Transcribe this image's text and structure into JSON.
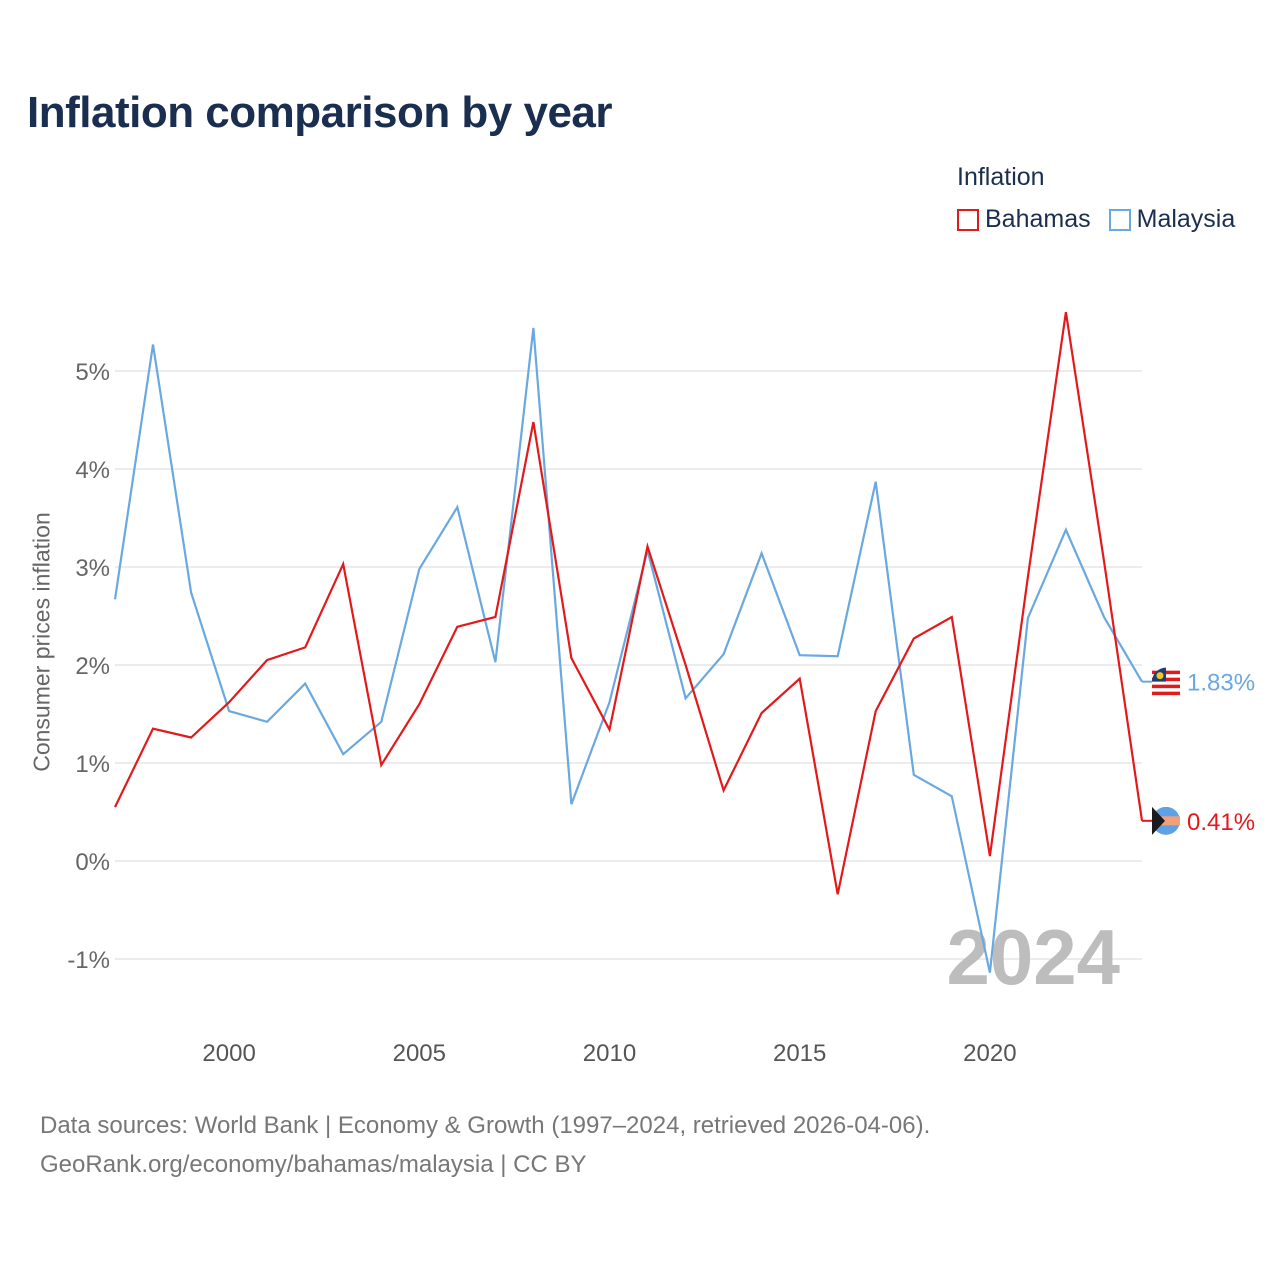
{
  "title": "Inflation comparison by year",
  "legend": {
    "title": "Inflation",
    "items": [
      {
        "name": "Bahamas",
        "color": "#e31a1c"
      },
      {
        "name": "Malaysia",
        "color": "#6aa8e0"
      }
    ]
  },
  "chart_data": {
    "type": "line",
    "title": "Inflation comparison by year",
    "xlabel": "",
    "ylabel": "Consumer prices inflation",
    "x": [
      1997,
      1998,
      1999,
      2000,
      2001,
      2002,
      2003,
      2004,
      2005,
      2006,
      2007,
      2008,
      2009,
      2010,
      2011,
      2012,
      2013,
      2014,
      2015,
      2016,
      2017,
      2018,
      2019,
      2020,
      2021,
      2022,
      2023,
      2024
    ],
    "series": [
      {
        "name": "Bahamas",
        "color": "#e31a1c",
        "values": [
          0.55,
          1.35,
          1.26,
          1.62,
          2.05,
          2.18,
          3.03,
          0.98,
          1.6,
          2.39,
          2.49,
          4.48,
          2.07,
          1.34,
          3.21,
          2.0,
          0.72,
          1.51,
          1.86,
          -0.34,
          1.53,
          2.27,
          2.49,
          0.05,
          2.9,
          5.6,
          3.06,
          0.41
        ],
        "end_label": "0.41%"
      },
      {
        "name": "Malaysia",
        "color": "#6aa8e0",
        "values": [
          2.67,
          5.27,
          2.74,
          1.53,
          1.42,
          1.81,
          1.09,
          1.42,
          2.98,
          3.61,
          2.03,
          5.44,
          0.58,
          1.62,
          3.17,
          1.66,
          2.11,
          3.14,
          2.1,
          2.09,
          3.87,
          0.88,
          0.66,
          -1.14,
          2.48,
          3.38,
          2.49,
          1.83
        ],
        "end_label": "1.83%"
      }
    ],
    "y_ticks": [
      -1,
      0,
      1,
      2,
      3,
      4,
      5
    ],
    "y_tick_labels": [
      "-1%",
      "0%",
      "1%",
      "2%",
      "3%",
      "4%",
      "5%"
    ],
    "x_ticks": [
      2000,
      2005,
      2010,
      2015,
      2020
    ],
    "x_tick_labels": [
      "2000",
      "2005",
      "2010",
      "2015",
      "2020"
    ],
    "xlim": [
      1997,
      2024
    ],
    "ylim": [
      -1.5,
      5.7
    ],
    "year_watermark": "2024"
  },
  "footer": {
    "line1": "Data sources: World Bank | Economy & Growth (1997–2024, retrieved 2026-04-06).",
    "line2": "GeoRank.org/economy/bahamas/malaysia | CC BY"
  }
}
